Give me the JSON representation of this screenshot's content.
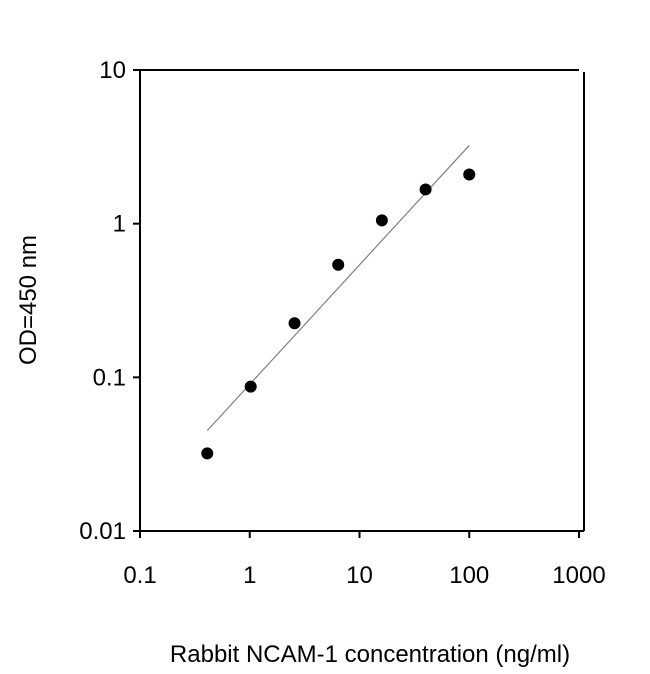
{
  "chart_data": {
    "type": "scatter",
    "title": "",
    "xlabel": "Rabbit NCAM-1 concentration (ng/ml)",
    "ylabel": "OD=450 nm",
    "xscale": "log",
    "yscale": "log",
    "xlim": [
      0.1,
      1000
    ],
    "ylim": [
      0.01,
      10
    ],
    "xticks": [
      "0.1",
      "1",
      "10",
      "100",
      "1000"
    ],
    "yticks": [
      "0.01",
      "0.1",
      "1",
      "10"
    ],
    "grid": false,
    "series": [
      {
        "x": [
          0.41,
          1.02,
          2.56,
          6.4,
          16,
          40,
          100
        ],
        "y": [
          0.032,
          0.087,
          0.225,
          0.54,
          1.05,
          1.67,
          2.09
        ],
        "marker": "filled-circle",
        "color": "#000000"
      }
    ],
    "fit_line": {
      "x": [
        0.41,
        100
      ],
      "y": [
        0.045,
        3.23
      ],
      "color": "#808080"
    }
  }
}
